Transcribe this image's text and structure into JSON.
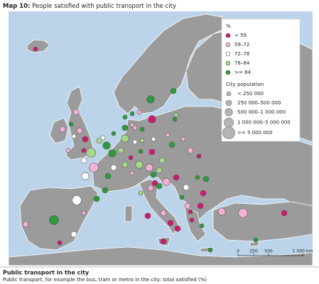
{
  "header": {
    "label": "Map 10:",
    "title": "People satisfied with public transport in the city"
  },
  "legend": {
    "satisfaction_title": "%",
    "satisfaction": [
      {
        "label": "< 59",
        "color": "#d2176f"
      },
      {
        "label": "59–72",
        "color": "#f3b1d5"
      },
      {
        "label": "72–78",
        "color": "#ffffff"
      },
      {
        "label": "78–84",
        "color": "#a8d889"
      },
      {
        "label": ">= 84",
        "color": "#2f9a3b"
      }
    ],
    "population_title": "City population",
    "population": [
      "< 250 000",
      "250 000–500 000",
      "500 000–1 000 000",
      "1 000 000–5 000 000",
      ">= 5 000 000"
    ]
  },
  "scale": [
    "0",
    "250",
    "500",
    "1 000 km"
  ],
  "caption": {
    "title": "Public transport in the city",
    "text": "Public transport, for example the bus, tram or metro in the city: total satisfied (%)"
  }
}
